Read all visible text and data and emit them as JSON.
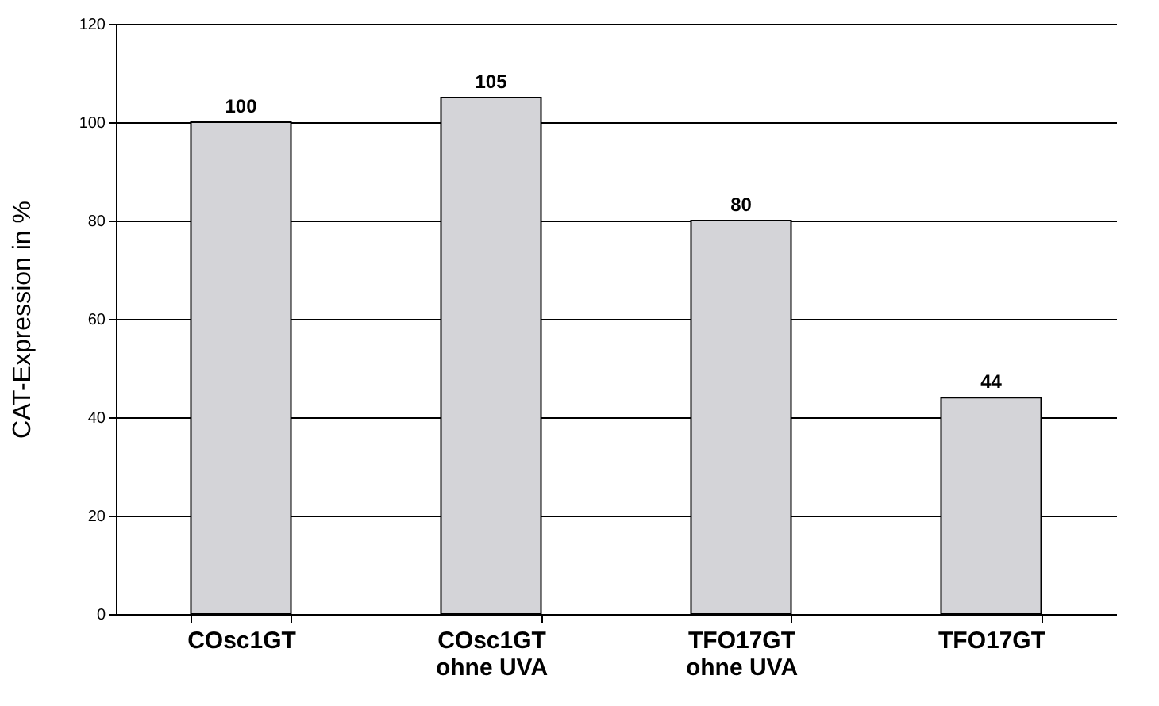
{
  "chart_data": {
    "type": "bar",
    "ylabel": "CAT-Expression in %",
    "categories": [
      "COsc1GT",
      "COsc1GT\nohne UVA",
      "TFO17GT\nohne UVA",
      "TFO17GT"
    ],
    "values": [
      100,
      105,
      80,
      44
    ],
    "color": "#d4d4d8",
    "ylim": [
      0,
      120
    ],
    "yticks": [
      0,
      20,
      40,
      60,
      80,
      100,
      120
    ],
    "grid": "y",
    "data_labels": true
  }
}
